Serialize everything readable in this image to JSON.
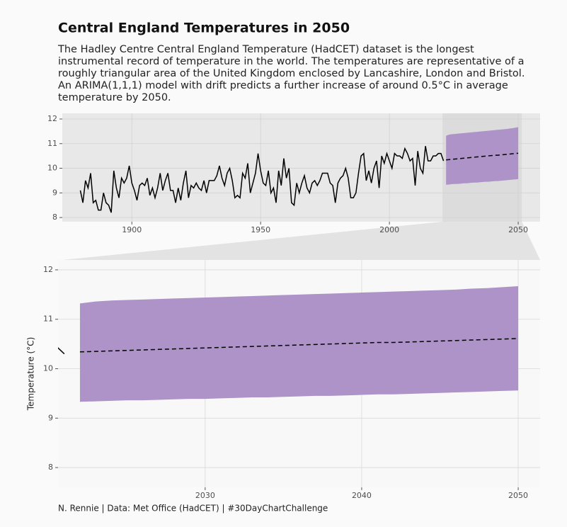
{
  "chart_data": {
    "type": "line",
    "title": "Central England Temperatures in 2050",
    "subtitle": [
      "The Hadley Centre Central England Temperature (HadCET) dataset is the longest",
      "instrumental record of temperature in the world. The temperatures are representative of a",
      "roughly triangular area of the United Kingdom enclosed by Lancashire, London and Bristol.",
      "An ARIMA(1,1,1) model with drift predicts a further increase of around 0.5°C in average",
      "temperature by 2050."
    ],
    "caption": "N. Rennie | Data: Met Office (HadCET) | #30DayChartChallenge",
    "series": [
      {
        "color": "#000000",
        "x": [
          1880,
          1881,
          1882,
          1883,
          1884,
          1885,
          1886,
          1887,
          1888,
          1889,
          1890,
          1891,
          1892,
          1893,
          1894,
          1895,
          1896,
          1897,
          1898,
          1899,
          1900,
          1901,
          1902,
          1903,
          1904,
          1905,
          1906,
          1907,
          1908,
          1909,
          1910,
          1911,
          1912,
          1913,
          1914,
          1915,
          1916,
          1917,
          1918,
          1919,
          1920,
          1921,
          1922,
          1923,
          1924,
          1925,
          1926,
          1927,
          1928,
          1929,
          1930,
          1931,
          1932,
          1933,
          1934,
          1935,
          1936,
          1937,
          1938,
          1939,
          1940,
          1941,
          1942,
          1943,
          1944,
          1945,
          1946,
          1947,
          1948,
          1949,
          1950,
          1951,
          1952,
          1953,
          1954,
          1955,
          1956,
          1957,
          1958,
          1959,
          1960,
          1961,
          1962,
          1963,
          1964,
          1965,
          1966,
          1967,
          1968,
          1969,
          1970,
          1971,
          1972,
          1973,
          1974,
          1975,
          1976,
          1977,
          1978,
          1979,
          1980,
          1981,
          1982,
          1983,
          1984,
          1985,
          1986,
          1987,
          1988,
          1989,
          1990,
          1991,
          1992,
          1993,
          1994,
          1995,
          1996,
          1997,
          1998,
          1999,
          2000,
          2001,
          2002,
          2003,
          2004,
          2005,
          2006,
          2007,
          2008,
          2009,
          2010,
          2011,
          2012,
          2013,
          2014,
          2015,
          2016,
          2017,
          2018,
          2019,
          2020,
          2021
        ],
        "values": [
          9.1,
          8.6,
          9.5,
          9.2,
          9.8,
          8.6,
          8.7,
          8.3,
          8.3,
          9.0,
          8.6,
          8.5,
          8.2,
          9.9,
          9.2,
          8.8,
          9.6,
          9.4,
          9.6,
          10.1,
          9.4,
          9.1,
          8.7,
          9.3,
          9.4,
          9.3,
          9.6,
          8.9,
          9.2,
          8.8,
          9.2,
          9.8,
          9.1,
          9.5,
          9.8,
          9.1,
          9.1,
          8.6,
          9.2,
          8.7,
          9.4,
          9.9,
          8.8,
          9.3,
          9.2,
          9.4,
          9.2,
          9.1,
          9.5,
          9.0,
          9.5,
          9.5,
          9.5,
          9.7,
          10.1,
          9.6,
          9.3,
          9.8,
          10.0,
          9.5,
          8.8,
          8.9,
          8.8,
          9.8,
          9.6,
          10.2,
          9.0,
          9.4,
          9.8,
          10.6,
          9.9,
          9.4,
          9.3,
          9.9,
          9.0,
          9.2,
          8.6,
          9.9,
          9.3,
          10.4,
          9.6,
          10.0,
          8.6,
          8.5,
          9.4,
          9.0,
          9.4,
          9.7,
          9.2,
          9.0,
          9.4,
          9.5,
          9.3,
          9.5,
          9.8,
          9.8,
          9.8,
          9.4,
          9.3,
          8.6,
          9.4,
          9.6,
          9.7,
          10.0,
          9.6,
          8.8,
          8.8,
          9.0,
          9.8,
          10.5,
          10.6,
          9.5,
          9.9,
          9.4,
          10.0,
          10.3,
          9.2,
          10.5,
          10.2,
          10.6,
          10.3,
          10.0,
          10.6,
          10.5,
          10.5,
          10.4,
          10.8,
          10.6,
          10.3,
          10.4,
          9.3,
          10.7,
          10.0,
          9.8,
          10.9,
          10.3,
          10.3,
          10.5,
          10.5,
          10.6,
          10.6,
          10.3
        ],
        "linestyle": "solid"
      },
      {
        "color": "#000000",
        "band_color": "#ad93c8",
        "linestyle": "dashed",
        "x": [
          2022,
          2023,
          2024,
          2025,
          2026,
          2027,
          2028,
          2029,
          2030,
          2031,
          2032,
          2033,
          2034,
          2035,
          2036,
          2037,
          2038,
          2039,
          2040,
          2041,
          2042,
          2043,
          2044,
          2045,
          2046,
          2047,
          2048,
          2049,
          2050
        ],
        "values": [
          10.34,
          10.35,
          10.36,
          10.37,
          10.38,
          10.39,
          10.4,
          10.41,
          10.42,
          10.43,
          10.44,
          10.45,
          10.46,
          10.47,
          10.48,
          10.49,
          10.5,
          10.51,
          10.52,
          10.53,
          10.53,
          10.54,
          10.55,
          10.56,
          10.57,
          10.58,
          10.59,
          10.6,
          10.61
        ],
        "lower": [
          9.33,
          9.34,
          9.35,
          9.36,
          9.36,
          9.37,
          9.38,
          9.39,
          9.39,
          9.4,
          9.41,
          9.42,
          9.42,
          9.43,
          9.44,
          9.45,
          9.45,
          9.46,
          9.47,
          9.48,
          9.48,
          9.49,
          9.5,
          9.51,
          9.52,
          9.53,
          9.54,
          9.55,
          9.56
        ],
        "upper": [
          11.32,
          11.36,
          11.38,
          11.39,
          11.4,
          11.41,
          11.42,
          11.43,
          11.44,
          11.45,
          11.46,
          11.47,
          11.48,
          11.49,
          11.5,
          11.51,
          11.52,
          11.53,
          11.54,
          11.55,
          11.56,
          11.57,
          11.58,
          11.59,
          11.6,
          11.62,
          11.63,
          11.65,
          11.67
        ]
      }
    ],
    "panels": [
      {
        "xlim": [
          1873,
          2058.5
        ],
        "ylim": [
          7.83,
          12.23
        ],
        "xticks": [
          1900,
          1950,
          2000,
          2050
        ],
        "yticks": [
          8,
          9,
          10,
          11,
          12
        ],
        "grid": true
      },
      {
        "xlim": [
          2020.6,
          2051.4
        ],
        "ylim": [
          7.6,
          12.2
        ],
        "xticks": [
          2030,
          2040,
          2050
        ],
        "yticks": [
          8,
          9,
          10,
          11,
          12
        ],
        "grid": true,
        "ylabel": "Temperature (°C)"
      }
    ]
  }
}
